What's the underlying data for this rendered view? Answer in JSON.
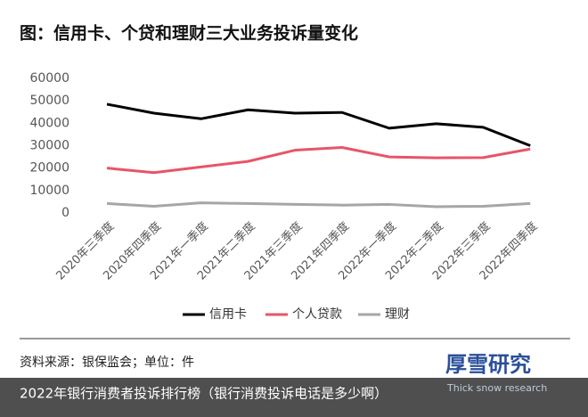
{
  "chart_data": {
    "type": "line",
    "title": "图：信用卡、个贷和理财三大业务投诉量变化",
    "categories": [
      "2020年三季度",
      "2020年四季度",
      "2021年一季度",
      "2021年二季度",
      "2021年三季度",
      "2021年四季度",
      "2022年一季度",
      "2022年二季度",
      "2022年三季度",
      "2022年四季度"
    ],
    "series": [
      {
        "name": "信用卡",
        "color": "#000000",
        "values": [
          48500,
          44500,
          42000,
          46000,
          44500,
          44800,
          37800,
          39800,
          38200,
          30000
        ]
      },
      {
        "name": "个人贷款",
        "color": "#e8546a",
        "values": [
          20000,
          18000,
          20500,
          23000,
          28000,
          29200,
          25000,
          24600,
          24700,
          28500
        ]
      },
      {
        "name": "理财",
        "color": "#a6a6a6",
        "values": [
          4200,
          3000,
          4500,
          4200,
          3800,
          3500,
          3800,
          2800,
          3000,
          4200
        ]
      }
    ],
    "ylim": [
      0,
      60000
    ],
    "yticks": [
      0,
      10000,
      20000,
      30000,
      40000,
      50000,
      60000
    ],
    "grid": false,
    "legend": "bottom"
  },
  "source": "资料来源：银保监会；单位：件",
  "logo": {
    "name": "厚雪研究",
    "subtitle": "Thick snow research"
  },
  "caption": "2022年银行消费者投诉排行榜（银行消费投诉电话是多少啊）"
}
